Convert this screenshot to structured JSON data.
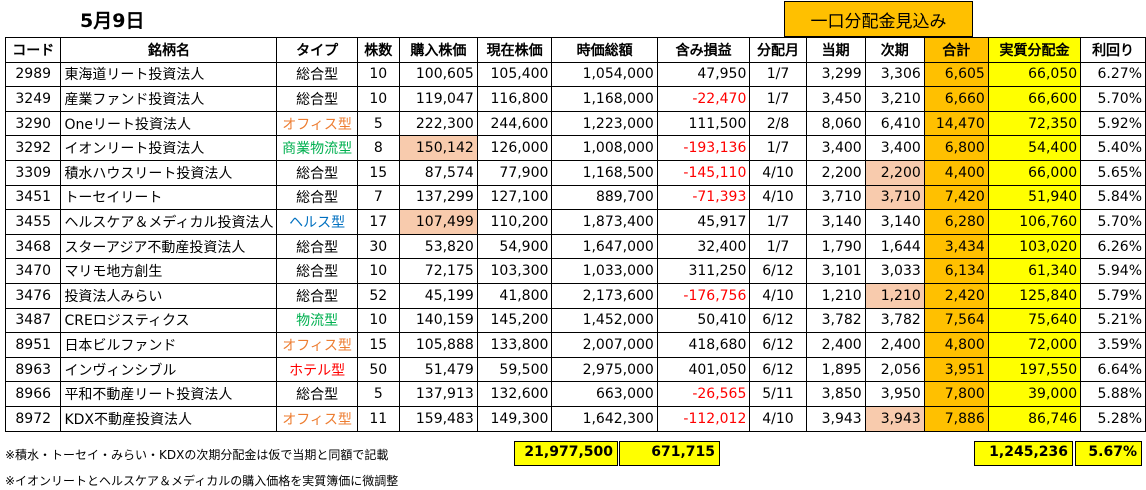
{
  "title": "5月9日",
  "banner": "一口分配金見込み",
  "headers": [
    "コード",
    "銘柄名",
    "タイプ",
    "株数",
    "購入株価",
    "現在株価",
    "時価総額",
    "含み損益",
    "分配月",
    "当期",
    "次期",
    "合計",
    "実質分配金",
    "利回り"
  ],
  "rows": [
    {
      "code": "2989",
      "name": "東海道リート投資法人",
      "type": "総合型",
      "shares": "10",
      "buy": "100,605",
      "price": "105,400",
      "mcap": "1,054,000",
      "pl": "47,950",
      "month": "1/7",
      "cur": "3,299",
      "next": "3,306",
      "total": "6,605",
      "real": "66,050",
      "yield": "6.27%"
    },
    {
      "code": "3249",
      "name": "産業ファンド投資法人",
      "type": "総合型",
      "shares": "10",
      "buy": "119,047",
      "price": "116,800",
      "mcap": "1,168,000",
      "pl": "-22,470",
      "month": "1/7",
      "cur": "3,450",
      "next": "3,210",
      "total": "6,660",
      "real": "66,600",
      "yield": "5.70%"
    },
    {
      "code": "3290",
      "name": "Oneリート投資法人",
      "type": "オフィス型",
      "shares": "5",
      "buy": "222,300",
      "price": "244,600",
      "mcap": "1,223,000",
      "pl": "111,500",
      "month": "2/8",
      "cur": "8,060",
      "next": "6,410",
      "total": "14,470",
      "real": "72,350",
      "yield": "5.92%"
    },
    {
      "code": "3292",
      "name": "イオンリート投資法人",
      "type": "商業物流型",
      "shares": "8",
      "buy": "150,142",
      "price": "126,000",
      "mcap": "1,008,000",
      "pl": "-193,136",
      "month": "1/7",
      "cur": "3,400",
      "next": "3,400",
      "total": "6,800",
      "real": "54,400",
      "yield": "5.40%"
    },
    {
      "code": "3309",
      "name": "積水ハウスリート投資法人",
      "type": "総合型",
      "shares": "15",
      "buy": "87,574",
      "price": "77,900",
      "mcap": "1,168,500",
      "pl": "-145,110",
      "month": "4/10",
      "cur": "2,200",
      "next": "2,200",
      "total": "4,400",
      "real": "66,000",
      "yield": "5.65%"
    },
    {
      "code": "3451",
      "name": "トーセイリート",
      "type": "総合型",
      "shares": "7",
      "buy": "137,299",
      "price": "127,100",
      "mcap": "889,700",
      "pl": "-71,393",
      "month": "4/10",
      "cur": "3,710",
      "next": "3,710",
      "total": "7,420",
      "real": "51,940",
      "yield": "5.84%"
    },
    {
      "code": "3455",
      "name": "ヘルスケア＆メディカル投資法人",
      "type": "ヘルス型",
      "shares": "17",
      "buy": "107,499",
      "price": "110,200",
      "mcap": "1,873,400",
      "pl": "45,917",
      "month": "1/7",
      "cur": "3,140",
      "next": "3,140",
      "total": "6,280",
      "real": "106,760",
      "yield": "5.70%"
    },
    {
      "code": "3468",
      "name": "スターアジア不動産投資法人",
      "type": "総合型",
      "shares": "30",
      "buy": "53,820",
      "price": "54,900",
      "mcap": "1,647,000",
      "pl": "32,400",
      "month": "1/7",
      "cur": "1,790",
      "next": "1,644",
      "total": "3,434",
      "real": "103,020",
      "yield": "6.26%"
    },
    {
      "code": "3470",
      "name": "マリモ地方創生",
      "type": "総合型",
      "shares": "10",
      "buy": "72,175",
      "price": "103,300",
      "mcap": "1,033,000",
      "pl": "311,250",
      "month": "6/12",
      "cur": "3,101",
      "next": "3,033",
      "total": "6,134",
      "real": "61,340",
      "yield": "5.94%"
    },
    {
      "code": "3476",
      "name": "投資法人みらい",
      "type": "総合型",
      "shares": "52",
      "buy": "45,199",
      "price": "41,800",
      "mcap": "2,173,600",
      "pl": "-176,756",
      "month": "4/10",
      "cur": "1,210",
      "next": "1,210",
      "total": "2,420",
      "real": "125,840",
      "yield": "5.79%"
    },
    {
      "code": "3487",
      "name": "CREロジスティクス",
      "type": "物流型",
      "shares": "10",
      "buy": "140,159",
      "price": "145,200",
      "mcap": "1,452,000",
      "pl": "50,410",
      "month": "6/12",
      "cur": "3,782",
      "next": "3,782",
      "total": "7,564",
      "real": "75,640",
      "yield": "5.21%"
    },
    {
      "code": "8951",
      "name": "日本ビルファンド",
      "type": "オフィス型",
      "shares": "15",
      "buy": "105,888",
      "price": "133,800",
      "mcap": "2,007,000",
      "pl": "418,680",
      "month": "6/12",
      "cur": "2,400",
      "next": "2,400",
      "total": "4,800",
      "real": "72,000",
      "yield": "3.59%"
    },
    {
      "code": "8963",
      "name": "インヴィンシブル",
      "type": "ホテル型",
      "shares": "50",
      "buy": "51,479",
      "price": "59,500",
      "mcap": "2,975,000",
      "pl": "401,050",
      "month": "6/12",
      "cur": "1,895",
      "next": "2,056",
      "total": "3,951",
      "real": "197,550",
      "yield": "6.64%"
    },
    {
      "code": "8966",
      "name": "平和不動産リート投資法人",
      "type": "総合型",
      "shares": "5",
      "buy": "137,913",
      "price": "132,600",
      "mcap": "663,000",
      "pl": "-26,565",
      "month": "5/11",
      "cur": "3,850",
      "next": "3,950",
      "total": "7,800",
      "real": "39,000",
      "yield": "5.88%"
    },
    {
      "code": "8972",
      "name": "KDX不動産投資法人",
      "type": "オフィス型",
      "shares": "11",
      "buy": "159,483",
      "price": "149,300",
      "mcap": "1,642,300",
      "pl": "-112,012",
      "month": "4/10",
      "cur": "3,943",
      "next": "3,943",
      "total": "7,886",
      "real": "86,746",
      "yield": "5.28%"
    }
  ],
  "totals": {
    "mcap": "21,977,500",
    "pl": "671,715",
    "real": "1,245,236",
    "yield": "5.67%"
  },
  "notes": [
    "※積水・トーセイ・みらい・KDXの次期分配金は仮で当期と同額で記載",
    "※イオンリートとヘルスケア＆メディカルの購入価格を実質簿価に微調整"
  ]
}
